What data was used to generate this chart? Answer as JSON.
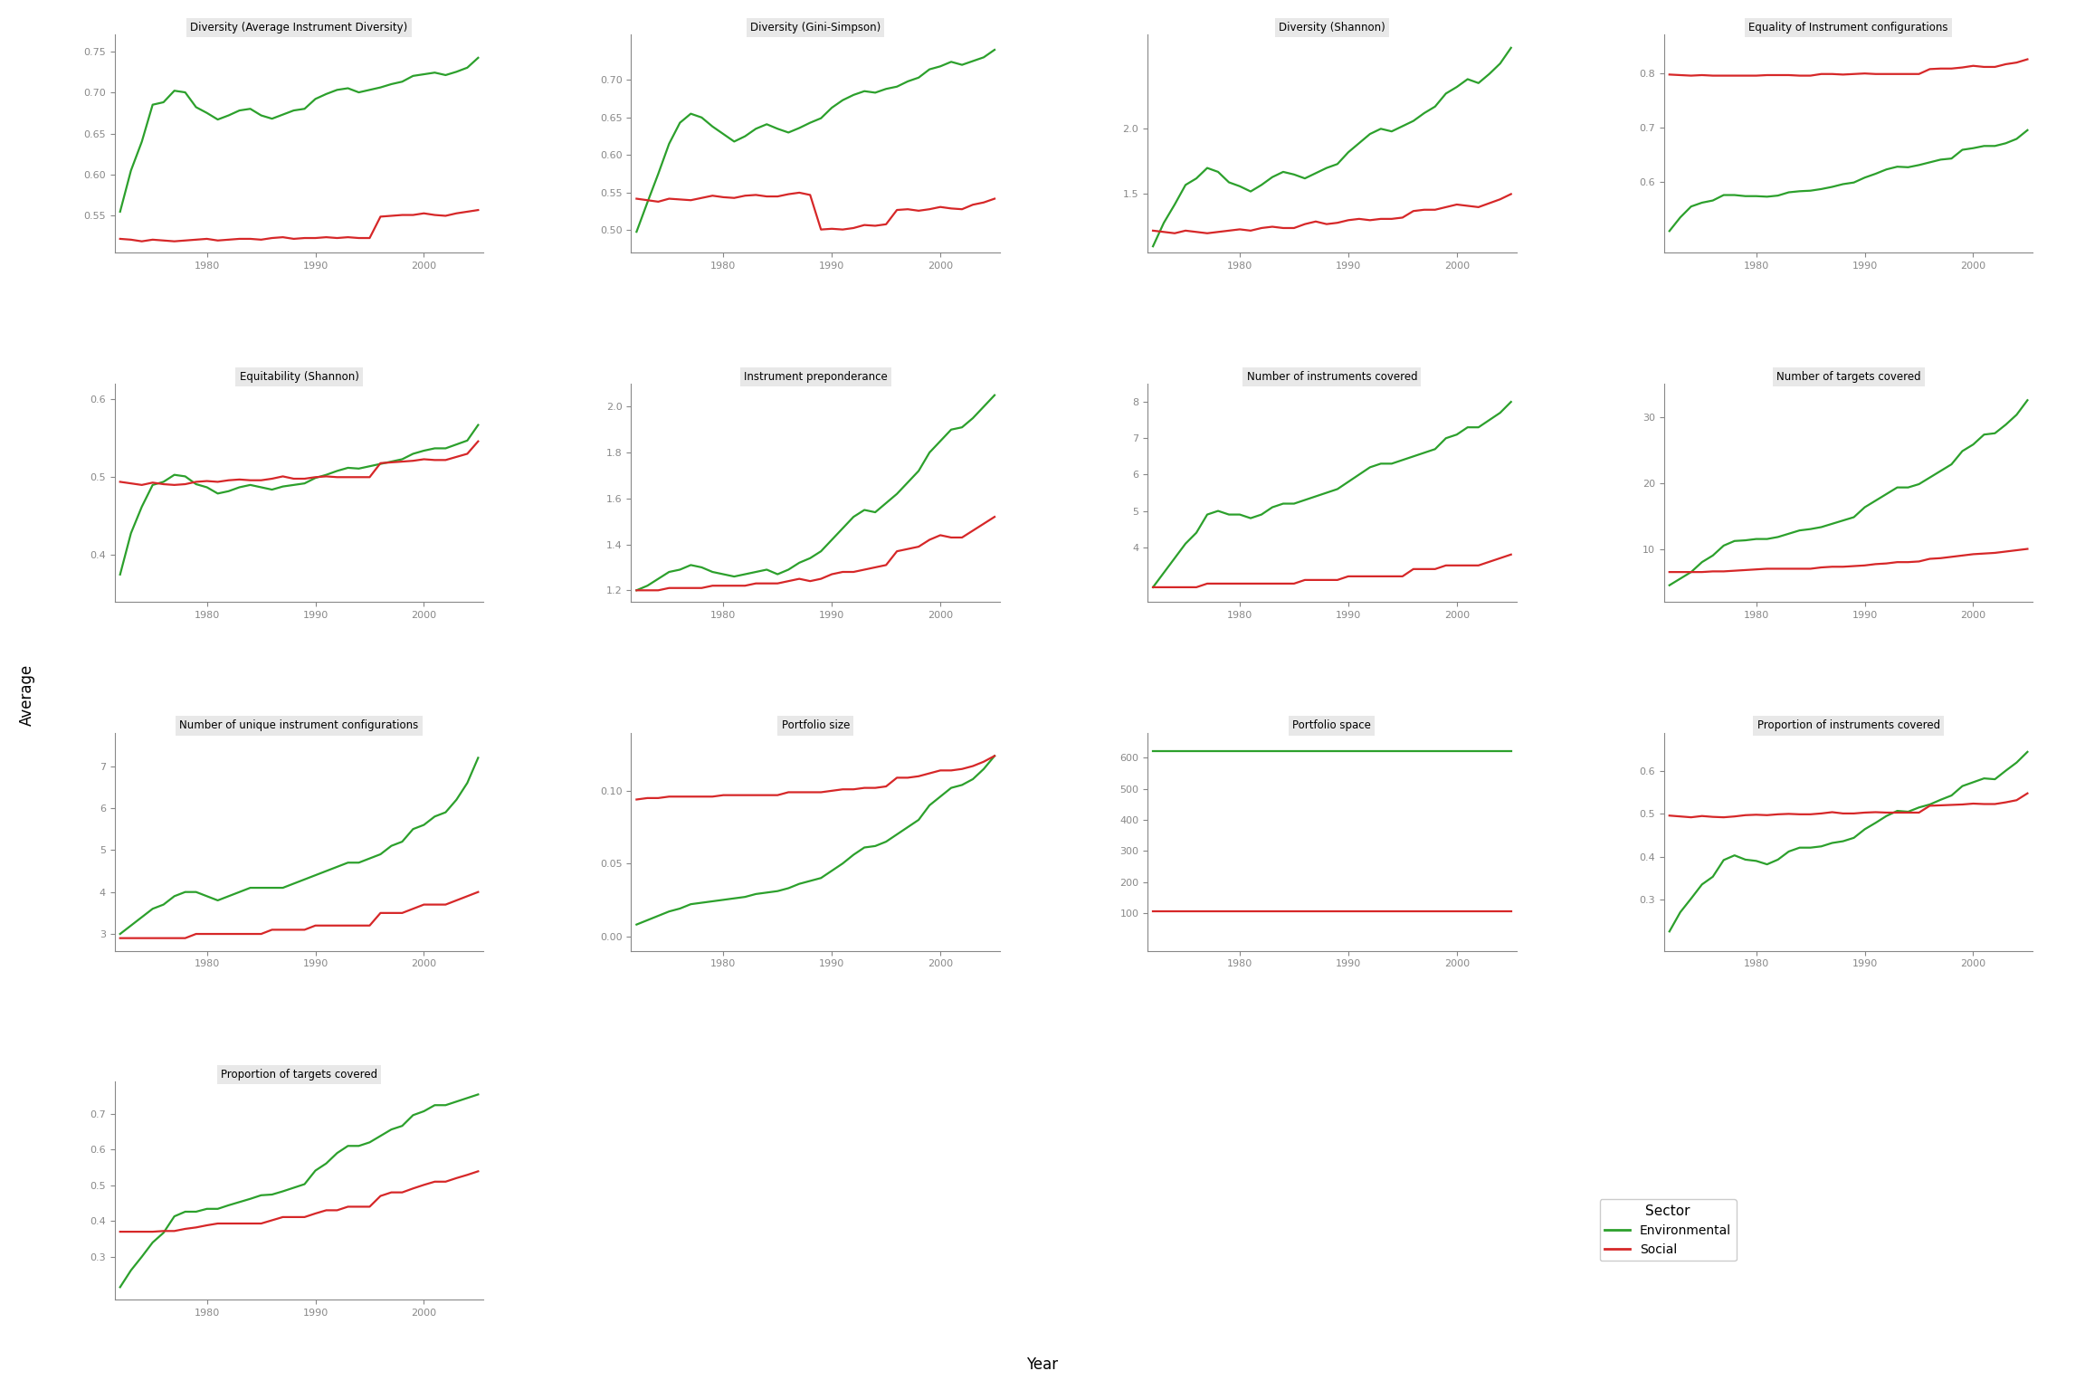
{
  "green_color": "#2ca02c",
  "red_color": "#d62728",
  "plot_bg": "#ffffff",
  "title_fontsize": 8.5,
  "axis_fontsize": 8,
  "tick_color": "#888888",
  "spine_color": "#888888",
  "title_bg": "#e8e8e8",
  "years": [
    1972,
    1973,
    1974,
    1975,
    1976,
    1977,
    1978,
    1979,
    1980,
    1981,
    1982,
    1983,
    1984,
    1985,
    1986,
    1987,
    1988,
    1989,
    1990,
    1991,
    1992,
    1993,
    1994,
    1995,
    1996,
    1997,
    1998,
    1999,
    2000,
    2001,
    2002,
    2003,
    2004,
    2005
  ],
  "panels": {
    "Diversity (Average Instrument Diversity)": {
      "env": [
        0.555,
        0.605,
        0.64,
        0.685,
        0.688,
        0.702,
        0.7,
        0.682,
        0.675,
        0.667,
        0.672,
        0.678,
        0.68,
        0.672,
        0.668,
        0.673,
        0.678,
        0.68,
        0.692,
        0.698,
        0.703,
        0.705,
        0.7,
        0.703,
        0.706,
        0.71,
        0.713,
        0.72,
        0.722,
        0.724,
        0.721,
        0.725,
        0.73,
        0.742
      ],
      "soc": [
        0.522,
        0.521,
        0.519,
        0.521,
        0.52,
        0.519,
        0.52,
        0.521,
        0.522,
        0.52,
        0.521,
        0.522,
        0.522,
        0.521,
        0.523,
        0.524,
        0.522,
        0.523,
        0.523,
        0.524,
        0.523,
        0.524,
        0.523,
        0.523,
        0.549,
        0.55,
        0.551,
        0.551,
        0.553,
        0.551,
        0.55,
        0.553,
        0.555,
        0.557
      ],
      "ylim": [
        0.505,
        0.77
      ],
      "yticks": [
        0.55,
        0.6,
        0.65,
        0.7,
        0.75
      ]
    },
    "Diversity (Gini-Simpson)": {
      "env": [
        0.498,
        0.537,
        0.575,
        0.615,
        0.643,
        0.655,
        0.65,
        0.638,
        0.628,
        0.618,
        0.625,
        0.635,
        0.641,
        0.635,
        0.63,
        0.636,
        0.643,
        0.649,
        0.663,
        0.673,
        0.68,
        0.685,
        0.683,
        0.688,
        0.691,
        0.698,
        0.703,
        0.714,
        0.718,
        0.724,
        0.72,
        0.725,
        0.73,
        0.74
      ],
      "soc": [
        0.542,
        0.54,
        0.538,
        0.542,
        0.541,
        0.54,
        0.543,
        0.546,
        0.544,
        0.543,
        0.546,
        0.547,
        0.545,
        0.545,
        0.548,
        0.55,
        0.547,
        0.501,
        0.502,
        0.501,
        0.503,
        0.507,
        0.506,
        0.508,
        0.527,
        0.528,
        0.526,
        0.528,
        0.531,
        0.529,
        0.528,
        0.534,
        0.537,
        0.542
      ],
      "ylim": [
        0.47,
        0.76
      ],
      "yticks": [
        0.5,
        0.55,
        0.6,
        0.65,
        0.7
      ]
    },
    "Diversity (Shannon)": {
      "env": [
        1.1,
        1.28,
        1.42,
        1.57,
        1.62,
        1.7,
        1.67,
        1.59,
        1.56,
        1.52,
        1.57,
        1.63,
        1.67,
        1.65,
        1.62,
        1.66,
        1.7,
        1.73,
        1.82,
        1.89,
        1.96,
        2.0,
        1.98,
        2.02,
        2.06,
        2.12,
        2.17,
        2.27,
        2.32,
        2.38,
        2.35,
        2.42,
        2.5,
        2.62
      ],
      "soc": [
        1.22,
        1.21,
        1.2,
        1.22,
        1.21,
        1.2,
        1.21,
        1.22,
        1.23,
        1.22,
        1.24,
        1.25,
        1.24,
        1.24,
        1.27,
        1.29,
        1.27,
        1.28,
        1.3,
        1.31,
        1.3,
        1.31,
        1.31,
        1.32,
        1.37,
        1.38,
        1.38,
        1.4,
        1.42,
        1.41,
        1.4,
        1.43,
        1.46,
        1.5
      ],
      "ylim": [
        1.05,
        2.72
      ],
      "yticks": [
        1.5,
        2.0
      ]
    },
    "Equality of Instrument configurations": {
      "env": [
        0.51,
        0.535,
        0.555,
        0.562,
        0.566,
        0.576,
        0.576,
        0.574,
        0.574,
        0.573,
        0.575,
        0.581,
        0.583,
        0.584,
        0.587,
        0.591,
        0.596,
        0.599,
        0.608,
        0.615,
        0.623,
        0.628,
        0.627,
        0.631,
        0.636,
        0.641,
        0.643,
        0.659,
        0.662,
        0.666,
        0.666,
        0.671,
        0.679,
        0.695
      ],
      "soc": [
        0.797,
        0.796,
        0.795,
        0.796,
        0.795,
        0.795,
        0.795,
        0.795,
        0.795,
        0.796,
        0.796,
        0.796,
        0.795,
        0.795,
        0.798,
        0.798,
        0.797,
        0.798,
        0.799,
        0.798,
        0.798,
        0.798,
        0.798,
        0.798,
        0.807,
        0.808,
        0.808,
        0.81,
        0.813,
        0.811,
        0.811,
        0.816,
        0.819,
        0.825
      ],
      "ylim": [
        0.47,
        0.87
      ],
      "yticks": [
        0.6,
        0.7,
        0.8
      ]
    },
    "Equitability (Shannon)": {
      "env": [
        0.375,
        0.428,
        0.462,
        0.49,
        0.494,
        0.503,
        0.501,
        0.491,
        0.487,
        0.479,
        0.482,
        0.487,
        0.49,
        0.487,
        0.484,
        0.488,
        0.49,
        0.492,
        0.499,
        0.503,
        0.508,
        0.512,
        0.511,
        0.514,
        0.517,
        0.52,
        0.523,
        0.53,
        0.534,
        0.537,
        0.537,
        0.542,
        0.547,
        0.567
      ],
      "soc": [
        0.494,
        0.492,
        0.49,
        0.493,
        0.491,
        0.49,
        0.491,
        0.494,
        0.495,
        0.494,
        0.496,
        0.497,
        0.496,
        0.496,
        0.498,
        0.501,
        0.498,
        0.498,
        0.5,
        0.501,
        0.5,
        0.5,
        0.5,
        0.5,
        0.518,
        0.519,
        0.52,
        0.521,
        0.523,
        0.522,
        0.522,
        0.526,
        0.53,
        0.546
      ],
      "ylim": [
        0.34,
        0.62
      ],
      "yticks": [
        0.4,
        0.5,
        0.6
      ]
    },
    "Instrument preponderance": {
      "env": [
        1.2,
        1.22,
        1.25,
        1.28,
        1.29,
        1.31,
        1.3,
        1.28,
        1.27,
        1.26,
        1.27,
        1.28,
        1.29,
        1.27,
        1.29,
        1.32,
        1.34,
        1.37,
        1.42,
        1.47,
        1.52,
        1.55,
        1.54,
        1.58,
        1.62,
        1.67,
        1.72,
        1.8,
        1.85,
        1.9,
        1.91,
        1.95,
        2.0,
        2.05
      ],
      "soc": [
        1.2,
        1.2,
        1.2,
        1.21,
        1.21,
        1.21,
        1.21,
        1.22,
        1.22,
        1.22,
        1.22,
        1.23,
        1.23,
        1.23,
        1.24,
        1.25,
        1.24,
        1.25,
        1.27,
        1.28,
        1.28,
        1.29,
        1.3,
        1.31,
        1.37,
        1.38,
        1.39,
        1.42,
        1.44,
        1.43,
        1.43,
        1.46,
        1.49,
        1.52
      ],
      "ylim": [
        1.15,
        2.1
      ],
      "yticks": [
        1.2,
        1.4,
        1.6,
        1.8,
        2.0
      ]
    },
    "Number of instruments covered": {
      "env": [
        2.9,
        3.3,
        3.7,
        4.1,
        4.4,
        4.9,
        5.0,
        4.9,
        4.9,
        4.8,
        4.9,
        5.1,
        5.2,
        5.2,
        5.3,
        5.4,
        5.5,
        5.6,
        5.8,
        6.0,
        6.2,
        6.3,
        6.3,
        6.4,
        6.5,
        6.6,
        6.7,
        7.0,
        7.1,
        7.3,
        7.3,
        7.5,
        7.7,
        8.0
      ],
      "soc": [
        2.9,
        2.9,
        2.9,
        2.9,
        2.9,
        3.0,
        3.0,
        3.0,
        3.0,
        3.0,
        3.0,
        3.0,
        3.0,
        3.0,
        3.1,
        3.1,
        3.1,
        3.1,
        3.2,
        3.2,
        3.2,
        3.2,
        3.2,
        3.2,
        3.4,
        3.4,
        3.4,
        3.5,
        3.5,
        3.5,
        3.5,
        3.6,
        3.7,
        3.8
      ],
      "ylim": [
        2.5,
        8.5
      ],
      "yticks": [
        4,
        5,
        6,
        7,
        8
      ]
    },
    "Number of targets covered": {
      "env": [
        4.5,
        5.5,
        6.5,
        8.0,
        9.0,
        10.5,
        11.2,
        11.3,
        11.5,
        11.5,
        11.8,
        12.3,
        12.8,
        13.0,
        13.3,
        13.8,
        14.3,
        14.8,
        16.3,
        17.3,
        18.3,
        19.3,
        19.3,
        19.8,
        20.8,
        21.8,
        22.8,
        24.8,
        25.8,
        27.3,
        27.5,
        28.8,
        30.3,
        32.5
      ],
      "soc": [
        6.5,
        6.5,
        6.5,
        6.5,
        6.6,
        6.6,
        6.7,
        6.8,
        6.9,
        7.0,
        7.0,
        7.0,
        7.0,
        7.0,
        7.2,
        7.3,
        7.3,
        7.4,
        7.5,
        7.7,
        7.8,
        8.0,
        8.0,
        8.1,
        8.5,
        8.6,
        8.8,
        9.0,
        9.2,
        9.3,
        9.4,
        9.6,
        9.8,
        10.0
      ],
      "ylim": [
        2,
        35
      ],
      "yticks": [
        10,
        20,
        30
      ]
    },
    "Number of unique instrument configurations": {
      "env": [
        3.0,
        3.2,
        3.4,
        3.6,
        3.7,
        3.9,
        4.0,
        4.0,
        3.9,
        3.8,
        3.9,
        4.0,
        4.1,
        4.1,
        4.1,
        4.1,
        4.2,
        4.3,
        4.4,
        4.5,
        4.6,
        4.7,
        4.7,
        4.8,
        4.9,
        5.1,
        5.2,
        5.5,
        5.6,
        5.8,
        5.9,
        6.2,
        6.6,
        7.2
      ],
      "soc": [
        2.9,
        2.9,
        2.9,
        2.9,
        2.9,
        2.9,
        2.9,
        3.0,
        3.0,
        3.0,
        3.0,
        3.0,
        3.0,
        3.0,
        3.1,
        3.1,
        3.1,
        3.1,
        3.2,
        3.2,
        3.2,
        3.2,
        3.2,
        3.2,
        3.5,
        3.5,
        3.5,
        3.6,
        3.7,
        3.7,
        3.7,
        3.8,
        3.9,
        4.0
      ],
      "ylim": [
        2.6,
        7.8
      ],
      "yticks": [
        3,
        4,
        5,
        6,
        7
      ]
    },
    "Portfolio size": {
      "env": [
        0.008,
        0.011,
        0.014,
        0.017,
        0.019,
        0.022,
        0.023,
        0.024,
        0.025,
        0.026,
        0.027,
        0.029,
        0.03,
        0.031,
        0.033,
        0.036,
        0.038,
        0.04,
        0.045,
        0.05,
        0.056,
        0.061,
        0.062,
        0.065,
        0.07,
        0.075,
        0.08,
        0.09,
        0.096,
        0.102,
        0.104,
        0.108,
        0.115,
        0.124
      ],
      "soc": [
        0.094,
        0.095,
        0.095,
        0.096,
        0.096,
        0.096,
        0.096,
        0.096,
        0.097,
        0.097,
        0.097,
        0.097,
        0.097,
        0.097,
        0.099,
        0.099,
        0.099,
        0.099,
        0.1,
        0.101,
        0.101,
        0.102,
        0.102,
        0.103,
        0.109,
        0.109,
        0.11,
        0.112,
        0.114,
        0.114,
        0.115,
        0.117,
        0.12,
        0.124
      ],
      "ylim": [
        -0.01,
        0.14
      ],
      "yticks": [
        0.0,
        0.05,
        0.1
      ]
    },
    "Portfolio space": {
      "env": [
        620,
        620,
        620,
        620,
        620,
        620,
        620,
        620,
        620,
        620,
        620,
        620,
        620,
        620,
        620,
        620,
        620,
        620,
        620,
        620,
        620,
        620,
        620,
        620,
        620,
        620,
        620,
        620,
        620,
        620,
        620,
        620,
        620,
        620
      ],
      "soc": [
        108,
        108,
        108,
        108,
        108,
        108,
        108,
        108,
        108,
        108,
        108,
        108,
        108,
        108,
        108,
        108,
        108,
        108,
        108,
        108,
        108,
        108,
        108,
        108,
        108,
        108,
        108,
        108,
        108,
        108,
        108,
        108,
        108,
        108
      ],
      "ylim": [
        -20,
        680
      ],
      "yticks": [
        100,
        200,
        300,
        400,
        500,
        600
      ]
    },
    "Proportion of instruments covered": {
      "env": [
        0.225,
        0.27,
        0.302,
        0.335,
        0.353,
        0.392,
        0.403,
        0.393,
        0.39,
        0.382,
        0.393,
        0.412,
        0.421,
        0.421,
        0.424,
        0.432,
        0.436,
        0.444,
        0.464,
        0.479,
        0.495,
        0.507,
        0.505,
        0.515,
        0.522,
        0.533,
        0.543,
        0.565,
        0.574,
        0.583,
        0.581,
        0.601,
        0.62,
        0.645
      ],
      "soc": [
        0.496,
        0.494,
        0.492,
        0.495,
        0.493,
        0.492,
        0.494,
        0.497,
        0.498,
        0.497,
        0.499,
        0.5,
        0.499,
        0.499,
        0.501,
        0.504,
        0.501,
        0.501,
        0.503,
        0.504,
        0.503,
        0.503,
        0.503,
        0.503,
        0.519,
        0.52,
        0.521,
        0.522,
        0.524,
        0.523,
        0.523,
        0.527,
        0.532,
        0.548
      ],
      "ylim": [
        0.18,
        0.69
      ],
      "yticks": [
        0.3,
        0.4,
        0.5,
        0.6
      ]
    },
    "Proportion of targets covered": {
      "env": [
        0.215,
        0.262,
        0.3,
        0.34,
        0.367,
        0.413,
        0.426,
        0.426,
        0.434,
        0.434,
        0.444,
        0.453,
        0.462,
        0.472,
        0.474,
        0.483,
        0.493,
        0.503,
        0.541,
        0.561,
        0.59,
        0.61,
        0.61,
        0.62,
        0.638,
        0.656,
        0.666,
        0.696,
        0.707,
        0.724,
        0.724,
        0.734,
        0.744,
        0.754
      ],
      "soc": [
        0.37,
        0.37,
        0.37,
        0.37,
        0.372,
        0.372,
        0.378,
        0.382,
        0.388,
        0.393,
        0.393,
        0.393,
        0.393,
        0.393,
        0.402,
        0.411,
        0.411,
        0.411,
        0.421,
        0.43,
        0.43,
        0.44,
        0.44,
        0.44,
        0.47,
        0.48,
        0.48,
        0.491,
        0.501,
        0.51,
        0.51,
        0.52,
        0.529,
        0.539
      ],
      "ylim": [
        0.18,
        0.79
      ],
      "yticks": [
        0.3,
        0.4,
        0.5,
        0.6,
        0.7
      ]
    }
  },
  "panel_order": [
    "Diversity (Average Instrument Diversity)",
    "Diversity (Gini-Simpson)",
    "Diversity (Shannon)",
    "Equality of Instrument configurations",
    "Equitability (Shannon)",
    "Instrument preponderance",
    "Number of instruments covered",
    "Number of targets covered",
    "Number of unique instrument configurations",
    "Portfolio size",
    "Portfolio space",
    "Proportion of instruments covered",
    "Proportion of targets covered"
  ],
  "figsize": [
    23.04,
    15.36
  ],
  "dpi": 100,
  "xlabel": "Year",
  "ylabel": "Average",
  "legend_title": "Sector",
  "legend_labels": [
    "Environmental",
    "Social"
  ]
}
